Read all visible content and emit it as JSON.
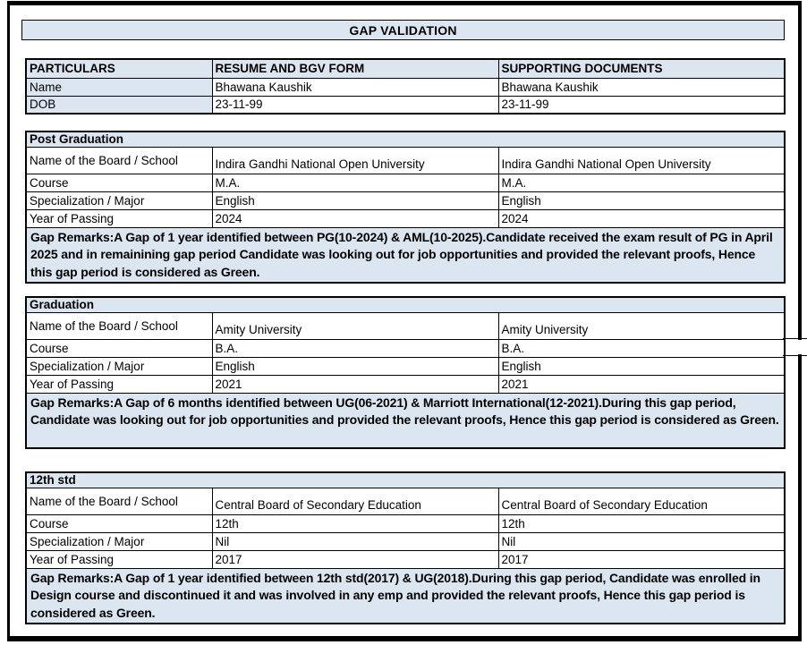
{
  "title_bar": {
    "text": "GAP VALIDATION"
  },
  "colors": {
    "fill_light_blue": "#dce6f1",
    "border": "#000000",
    "background": "#ffffff",
    "text": "#000000"
  },
  "top_table": {
    "columns": [
      "PARTICULARS",
      "RESUME AND BGV FORM",
      "SUPPORTING DOCUMENTS"
    ],
    "rows": [
      {
        "label": "Name",
        "resume": "Bhawana Kaushik",
        "supporting": "Bhawana Kaushik"
      },
      {
        "label": "DOB",
        "resume": "23-11-99",
        "supporting": "23-11-99"
      }
    ]
  },
  "sections": [
    {
      "heading": "Post Graduation",
      "rows": [
        {
          "label": "Name of the Board / School",
          "resume": "Indira Gandhi National Open University",
          "supporting": "Indira Gandhi National Open University"
        },
        {
          "label": "Course",
          "resume": "M.A.",
          "supporting": "M.A."
        },
        {
          "label": "Specialization / Major",
          "resume": "English",
          "supporting": "English"
        },
        {
          "label": "Year of Passing",
          "resume": "2024",
          "supporting": "2024"
        }
      ],
      "gap_remarks": "Gap Remarks:A Gap of 1 year identified between PG(10-2024) & AML(10-2025).Candidate received the exam result of PG in April 2025 and in remainining gap period Candidate was looking out for job opportunities and provided the relevant proofs, Hence this gap period is considered as Green."
    },
    {
      "heading": "Graduation",
      "rows": [
        {
          "label": "Name of the Board / School",
          "resume": "Amity University",
          "supporting": "Amity University"
        },
        {
          "label": "Course",
          "resume": "B.A.",
          "supporting": "B.A."
        },
        {
          "label": "Specialization / Major",
          "resume": "English",
          "supporting": "English"
        },
        {
          "label": "Year of Passing",
          "resume": "2021",
          "supporting": "2021"
        }
      ],
      "gap_remarks": "Gap Remarks:A Gap of 6 months identified between UG(06-2021) & Marriott International(12-2021).During this gap period, Candidate was looking out for job opportunities and provided the relevant proofs, Hence this gap period is considered as Green."
    },
    {
      "heading": "12th std",
      "rows": [
        {
          "label": "Name of the Board / School",
          "resume": "Central Board of Secondary Education",
          "supporting": "Central Board of Secondary Education"
        },
        {
          "label": "Course",
          "resume": "12th",
          "supporting": "12th"
        },
        {
          "label": "Specialization / Major",
          "resume": "Nil",
          "supporting": "Nil"
        },
        {
          "label": "Year of Passing",
          "resume": "2017",
          "supporting": "2017"
        }
      ],
      "gap_remarks": "Gap Remarks:A Gap of 1 year identified between 12th std(2017) & UG(2018).During this gap period, Candidate was enrolled in Design course and discontinued it and was involved in any emp and provided the relevant proofs, Hence this gap period is considered as Green."
    }
  ]
}
